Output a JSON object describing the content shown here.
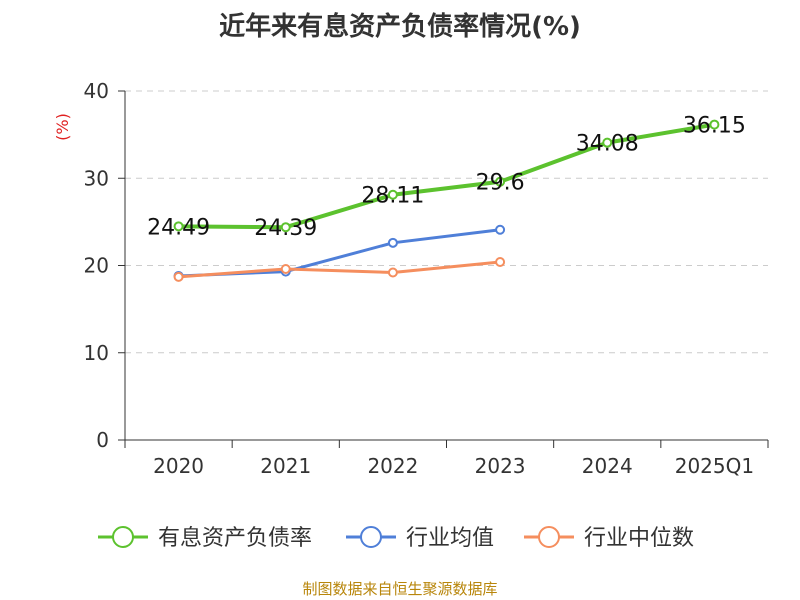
{
  "chart_data": {
    "type": "line",
    "title": "近年来有息资产负债率情况(%)",
    "ylabel": "(%)",
    "xlabel": "",
    "ylim": [
      0,
      40
    ],
    "yticks": [
      0,
      10,
      20,
      30,
      40
    ],
    "grid": true,
    "legend_position": "bottom",
    "categories": [
      "2020",
      "2021",
      "2022",
      "2023",
      "2024",
      "2025Q1"
    ],
    "series": [
      {
        "name": "有息资产负债率",
        "color": "#5cc22e",
        "values": [
          24.49,
          24.39,
          28.11,
          29.6,
          34.08,
          36.15
        ],
        "labels": [
          "24.49",
          "24.39",
          "28.11",
          "29.6",
          "34.08",
          "36.15"
        ]
      },
      {
        "name": "行业均值",
        "color": "#4f7fd8",
        "values": [
          18.8,
          19.3,
          22.6,
          24.1,
          null,
          null
        ]
      },
      {
        "name": "行业中位数",
        "color": "#f58e5e",
        "values": [
          18.7,
          19.6,
          19.2,
          20.4,
          null,
          null
        ]
      }
    ]
  },
  "colors": {
    "ylabel": "#e02020",
    "source": "#b8860b",
    "grid": "#cccccc",
    "axis": "#333333"
  },
  "source_note": "制图数据来自恒生聚源数据库"
}
